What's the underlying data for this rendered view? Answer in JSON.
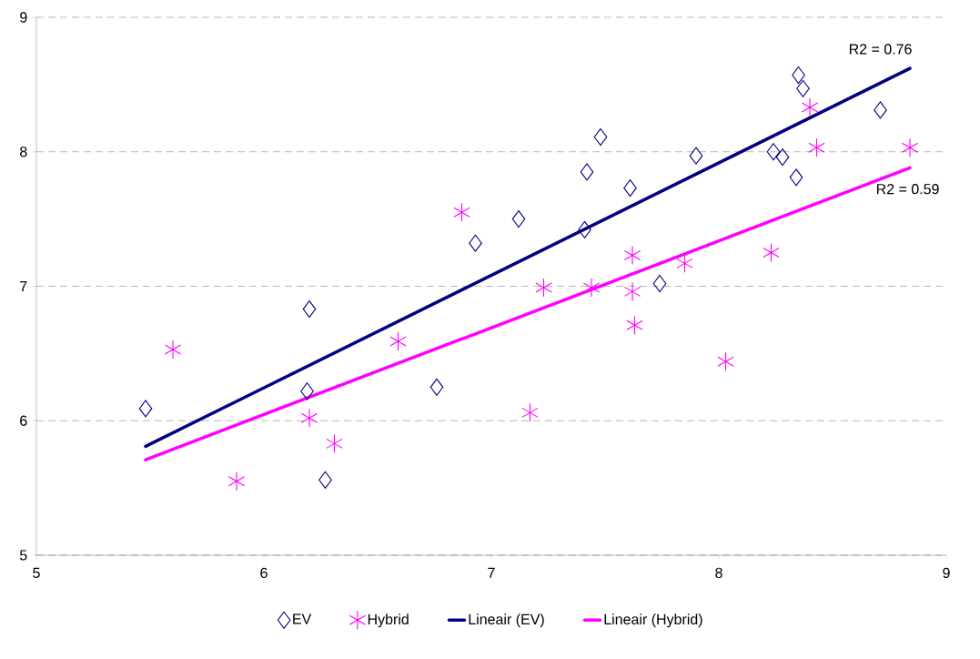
{
  "chart_data": {
    "type": "scatter",
    "xlim": [
      5,
      9
    ],
    "ylim": [
      5,
      9
    ],
    "xticks": [
      5,
      6,
      7,
      8,
      9
    ],
    "yticks": [
      5,
      6,
      7,
      8,
      9
    ],
    "grid": "y",
    "legend": "bottom",
    "series": [
      {
        "name": "EV",
        "marker": "diamond",
        "color": "#000080",
        "x": [
          5.48,
          6.2,
          6.19,
          6.27,
          6.76,
          6.93,
          7.12,
          7.41,
          7.42,
          7.48,
          7.61,
          7.74,
          7.9,
          8.24,
          8.28,
          8.34,
          8.35,
          8.37,
          8.71
        ],
        "values": [
          6.09,
          6.83,
          6.22,
          5.56,
          6.25,
          7.32,
          7.5,
          7.42,
          7.85,
          8.11,
          7.73,
          7.02,
          7.97,
          8.0,
          7.96,
          7.81,
          8.57,
          8.47,
          8.31
        ]
      },
      {
        "name": "Hybrid",
        "marker": "cross",
        "color": "#ff00ff",
        "x": [
          5.6,
          5.88,
          6.2,
          6.31,
          6.59,
          6.87,
          7.17,
          7.23,
          7.44,
          7.62,
          7.62,
          7.63,
          7.85,
          8.03,
          8.23,
          8.4,
          8.43,
          8.84
        ],
        "values": [
          6.53,
          5.55,
          6.02,
          5.83,
          6.59,
          7.55,
          6.06,
          6.99,
          6.99,
          7.23,
          6.96,
          6.71,
          7.17,
          6.44,
          7.25,
          8.33,
          8.03,
          8.03
        ]
      },
      {
        "name": "Lineair (EV)",
        "type": "line",
        "color": "#000080",
        "x": [
          5.48,
          8.84
        ],
        "values": [
          5.81,
          8.62
        ]
      },
      {
        "name": "Lineair (Hybrid)",
        "type": "line",
        "color": "#ff00ff",
        "x": [
          5.48,
          8.84
        ],
        "values": [
          5.71,
          7.88
        ]
      }
    ],
    "annotations": [
      {
        "text": "R2 = 0.76",
        "x": 8.84,
        "y": 8.62
      },
      {
        "text": "R2 = 0.59",
        "x": 8.84,
        "y": 7.88
      }
    ]
  }
}
